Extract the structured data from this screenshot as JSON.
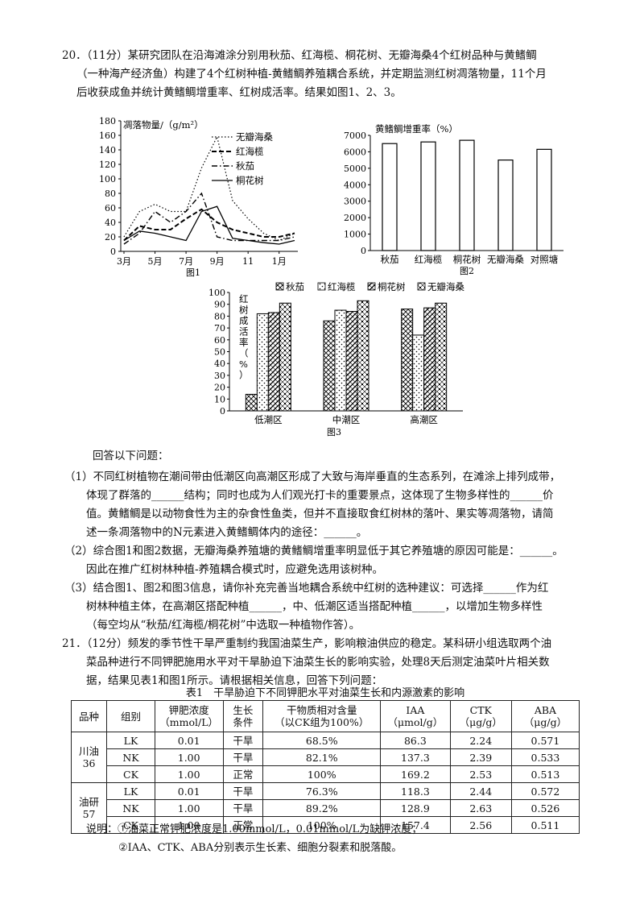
{
  "q20": {
    "lines": [
      "20．（11分）某研究团队在沿海滩涂分别用秋茄、红海榄、桐花树、无瓣海桑4个红树品种与黄鳍鲷",
      "（一种海产经济鱼）构建了4个红树种植-黄鳍鲷养殖耦合系统，并定期监测红树凋落物量，11个月",
      "后收获成鱼并统计黄鳍鲷增重率、红树成活率。结果如图1、2、3。"
    ],
    "answer_prompt": "回答以下问题：",
    "sub_lines": [
      "（1）不同红树植物在潮间带由低潮区向高潮区形成了大致与海岸垂直的生态系列，在滩涂上排列成带，",
      "体现了群落的______结构；同时也成为人们观光打卡的重要景点，这体现了生物多样性的______价",
      "值。黄鳍鲷是以动物食性为主的杂食性鱼类，但并不直接取食红树林的落叶、果实等凋落物，请简",
      "述一条凋落物中的N元素进入黄鳍鲷体内的途径：______。",
      "（2）综合图1和图2数据，无瓣海桑养殖塘的黄鳍鲷增重率明显低于其它养殖塘的原因可能是：______。",
      "因此在推广红树林种植-养殖耦合模式时，应避免选用该树种。",
      "（3）结合图1、图2和图3信息，请你补充完善当地耦合系统中红树的选种建议：可选择______作为红",
      "树林种植主体，在高潮区搭配种植______，中、低潮区适当搭配种植______，以增加生物多样性",
      "（每空均从“秋茄/红海榄/桐花树”中选取一种植物作答）。"
    ]
  },
  "q21": {
    "lines": [
      "21．（12分）频发的季节性干旱严重制约我国油菜生产，影响粮油供应的稳定。某科研小组选取两个油",
      "菜品种进行不同钾肥施用水平对干旱胁迫下油菜生长的影响实验，处理8天后测定油菜叶片相关数",
      "据，结果见表1和图1所示。请根据相关信息，回答下列问题："
    ],
    "table_caption": "表1　干旱胁迫下不同钾肥水平对油菜生长和内源激素的影响",
    "headers": [
      "品种",
      "组别",
      "钾肥浓度\n（mmol/L）",
      "生长\n条件",
      "干物质相对含量\n（以CK组为100%）",
      "IAA\n（μmol/g）",
      "CTK\n（μg/g）",
      "ABA\n（μg/g）"
    ],
    "varieties": [
      "川油\n36",
      "油研\n57"
    ],
    "rows": [
      [
        "LK",
        "0.01",
        "干旱",
        "68.5%",
        "86.3",
        "2.24",
        "0.571"
      ],
      [
        "NK",
        "1.00",
        "干旱",
        "82.1%",
        "137.3",
        "2.39",
        "0.533"
      ],
      [
        "CK",
        "1.00",
        "正常",
        "100%",
        "169.2",
        "2.53",
        "0.513"
      ],
      [
        "LK",
        "0.01",
        "干旱",
        "76.3%",
        "118.3",
        "2.44",
        "0.572"
      ],
      [
        "NK",
        "1.00",
        "干旱",
        "89.2%",
        "128.9",
        "2.63",
        "0.526"
      ],
      [
        "CK",
        "1.00",
        "正常",
        "100%",
        "157.4",
        "2.56",
        "0.511"
      ]
    ],
    "notes": [
      "说明：①油菜正常钾肥浓度是1.00mmol/L，0.01mmol/L为缺钾浓度；",
      "②IAA、CTK、ABA分别表示生长素、细胞分裂素和脱落酸。"
    ]
  },
  "chart_data": [
    {
      "type": "line",
      "caption": "图1",
      "ylabel": "凋落物量/（g/m²）",
      "x": [
        3,
        4,
        5,
        6,
        7,
        8,
        9,
        10,
        11,
        12,
        13,
        14
      ],
      "xticks": [
        "3月",
        "5月",
        "7月",
        "9月",
        "11",
        "1月"
      ],
      "ylim": [
        0,
        180
      ],
      "yticks": [
        0,
        20,
        40,
        60,
        80,
        100,
        120,
        140,
        160,
        180
      ],
      "legend_position": "top-right",
      "series": [
        {
          "name": "无瓣海桑",
          "style": "dotted",
          "values": [
            20,
            55,
            65,
            55,
            55,
            115,
            158,
            70,
            45,
            25,
            15,
            25
          ]
        },
        {
          "name": "红海榄",
          "style": "dashed",
          "values": [
            15,
            35,
            30,
            30,
            45,
            58,
            40,
            30,
            25,
            20,
            20,
            25
          ]
        },
        {
          "name": "秋茄",
          "style": "dashdot",
          "values": [
            10,
            25,
            55,
            40,
            55,
            80,
            20,
            15,
            15,
            15,
            15,
            20
          ]
        },
        {
          "name": "桐花树",
          "style": "solid",
          "values": [
            15,
            28,
            25,
            20,
            15,
            55,
            62,
            18,
            15,
            12,
            10,
            15
          ]
        }
      ]
    },
    {
      "type": "bar",
      "caption": "图2",
      "ylabel": "黄鳍鲷增重率（%）",
      "categories": [
        "秋茄",
        "红海榄",
        "桐花树",
        "无瓣海桑",
        "对照塘"
      ],
      "values": [
        6500,
        6600,
        6700,
        5500,
        6150
      ],
      "ylim": [
        0,
        7000
      ],
      "yticks": [
        0,
        1000,
        2000,
        3000,
        4000,
        5000,
        6000,
        7000
      ]
    },
    {
      "type": "bar",
      "caption": "图3",
      "ylabel": "红树成活率（%）",
      "categories": [
        "低潮区",
        "中潮区",
        "高潮区"
      ],
      "ylim": [
        0,
        100
      ],
      "yticks": [
        0,
        10,
        20,
        30,
        40,
        50,
        60,
        70,
        80,
        90,
        100
      ],
      "legend_position": "top",
      "series": [
        {
          "name": "秋茄",
          "values": [
            14,
            76,
            86
          ]
        },
        {
          "name": "红海榄",
          "values": [
            82,
            85,
            64
          ]
        },
        {
          "name": "桐花树",
          "values": [
            83,
            84,
            87
          ]
        },
        {
          "name": "无瓣海桑",
          "values": [
            91,
            93,
            91
          ]
        }
      ]
    }
  ]
}
